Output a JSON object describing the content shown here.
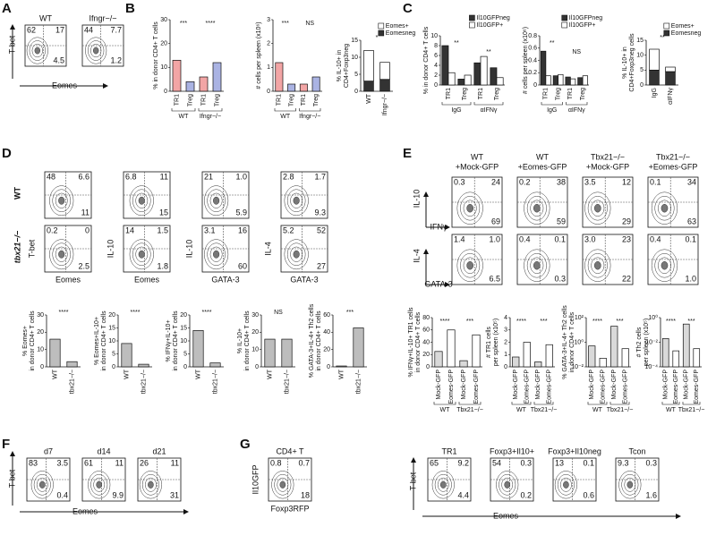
{
  "panel_letters": [
    "A",
    "B",
    "C",
    "D",
    "E",
    "F",
    "G"
  ],
  "row_labels": [
    "WT",
    "tbx21−/−"
  ],
  "shared_axes": [
    {
      "y": "T-bet",
      "x": "Eomes"
    },
    {
      "y": "IL-10",
      "x": "IFNγ"
    },
    {
      "y": "IL-4",
      "x": "GATA-3"
    },
    {
      "y": "T-bet",
      "x": "Eomes"
    },
    {
      "y": "T-bet",
      "x": "Eomes"
    }
  ],
  "flow_plots": [
    {
      "title": "WT",
      "quadrants": [
        "62",
        "17",
        "4.5"
      ]
    },
    {
      "title": "Ifngr−/−",
      "quadrants": [
        "44",
        "7.7",
        "1.2"
      ]
    },
    {
      "quadrants": [
        "48",
        "6.6",
        "11"
      ]
    },
    {
      "quadrants": [
        "6.8",
        "11",
        "15"
      ]
    },
    {
      "quadrants": [
        "21",
        "1.0",
        "5.9"
      ]
    },
    {
      "quadrants": [
        "2.8",
        "1.7",
        "9.3"
      ]
    },
    {
      "y_label": "T-bet",
      "x_label": "Eomes",
      "quadrants": [
        "0.2",
        "0",
        "2.5"
      ]
    },
    {
      "y_label": "IL-10",
      "x_label": "Eomes",
      "quadrants": [
        "14",
        "1.5",
        "1.8"
      ]
    },
    {
      "y_label": "IL-10",
      "x_label": "GATA-3",
      "quadrants": [
        "3.1",
        "16",
        "60"
      ]
    },
    {
      "y_label": "IL-4",
      "x_label": "GATA-3",
      "quadrants": [
        "5.2",
        "52",
        "27"
      ]
    },
    {
      "title": "WT",
      "title2": "+Mock-GFP",
      "quadrants": [
        "0.3",
        "24",
        "69"
      ]
    },
    {
      "title": "WT",
      "title2": "+Eomes-GFP",
      "quadrants": [
        "0.2",
        "38",
        "59"
      ]
    },
    {
      "title": "Tbx21−/−",
      "title2": "+Mock-GFP",
      "quadrants": [
        "3.5",
        "12",
        "29"
      ]
    },
    {
      "title": "Tbx21−/−",
      "title2": "+Eomes-GFP",
      "quadrants": [
        "0.1",
        "34",
        "63"
      ]
    },
    {
      "quadrants": [
        "1.4",
        "1.0",
        "6.5"
      ]
    },
    {
      "quadrants": [
        "0.4",
        "0.1",
        "0.3"
      ]
    },
    {
      "quadrants": [
        "3.0",
        "23",
        "22"
      ]
    },
    {
      "quadrants": [
        "0.4",
        "0.1",
        "1.0"
      ]
    },
    {
      "title": "d7",
      "quadrants": [
        "83",
        "3.5",
        "0.4"
      ]
    },
    {
      "title": "d14",
      "quadrants": [
        "61",
        "11",
        "9.9"
      ]
    },
    {
      "title": "d21",
      "quadrants": [
        "26",
        "11",
        "31"
      ]
    },
    {
      "title": "CD4+ T",
      "y_label": "Il10GFP",
      "x_label": "Foxp3RFP",
      "quadrants": [
        "0.8",
        "0.7",
        "18"
      ]
    },
    {
      "title": "TR1",
      "quadrants": [
        "65",
        "9.2",
        "4.4"
      ]
    },
    {
      "title": "Foxp3+Il10+",
      "quadrants": [
        "54",
        "0.3",
        "0.2"
      ]
    },
    {
      "title": "Foxp3+Il10neg",
      "quadrants": [
        "13",
        "0.1",
        "0.6"
      ]
    },
    {
      "title": "Tcon",
      "quadrants": [
        "9.3",
        "0.3",
        "1.6"
      ]
    }
  ],
  "bar_charts": [
    {
      "y_label": [
        "% in donor CD4+ T cells"
      ],
      "categories": [
        "TR1",
        "Treg",
        "TR1",
        "Treg"
      ],
      "groups": [
        "WT",
        "Ifngr−/−"
      ],
      "values": [
        13,
        4,
        6,
        12
      ],
      "colors": [
        "#f2a5a5",
        "#aab3e3",
        "#f2a5a5",
        "#aab3e3"
      ],
      "ylim": [
        0,
        30
      ],
      "yticks": [
        0,
        10,
        20,
        30
      ],
      "significance": [
        "***",
        "****"
      ]
    },
    {
      "y_label": [
        "# cells per spleen (x10⁶)"
      ],
      "categories": [
        "TR1",
        "Treg",
        "TR1",
        "Treg"
      ],
      "groups": [
        "WT",
        "Ifngr−/−"
      ],
      "values": [
        1.2,
        0.3,
        0.3,
        0.6
      ],
      "colors": [
        "#f2a5a5",
        "#aab3e3",
        "#f2a5a5",
        "#aab3e3"
      ],
      "ylim": [
        0,
        3
      ],
      "yticks": [
        0,
        1,
        2,
        3
      ],
      "significance": [
        "***",
        "NS"
      ]
    },
    {
      "y_label": [
        "% IL-10+ in",
        "CD4+Foxp3neg"
      ],
      "categories": [
        "WT",
        "Ifngr−/−"
      ],
      "mode": "stacked",
      "series": [
        {
          "name": "Eomes+",
          "color": "#ffffff",
          "values": [
            9,
            5
          ]
        },
        {
          "name": "Eomesneg",
          "color": "#333333",
          "values": [
            3,
            3.5
          ]
        }
      ],
      "ylim": [
        0,
        15
      ],
      "yticks": [
        0,
        5,
        10,
        15
      ],
      "significance": [
        "*"
      ]
    },
    {
      "y_label": [
        "% in donor CD4+ T cells"
      ],
      "categories": [
        "TR1",
        "Treg",
        "TR1",
        "Treg"
      ],
      "groups": [
        "IgG",
        "αIFNγ"
      ],
      "mode": "grouped",
      "series": [
        {
          "name": "Il10GFPneg",
          "color": "#333333",
          "values": [
            8,
            1.2,
            4.5,
            3.5
          ]
        },
        {
          "name": "Il10GFP+",
          "color": "#ffffff",
          "values": [
            2.5,
            2,
            5.8,
            1.5
          ]
        }
      ],
      "ylim": [
        0,
        10
      ],
      "yticks": [
        0,
        2,
        4,
        6,
        8,
        10
      ],
      "significance": [
        "**",
        "**"
      ]
    },
    {
      "y_label": [
        "# cells per spleen (x10⁶)"
      ],
      "categories": [
        "TR1",
        "Treg",
        "TR1",
        "Treg"
      ],
      "groups": [
        "IgG",
        "αIFNγ"
      ],
      "mode": "grouped",
      "series": [
        {
          "name": "Il10GFPneg",
          "color": "#333333",
          "values": [
            0.55,
            0.15,
            0.13,
            0.12
          ]
        },
        {
          "name": "Il10GFP+",
          "color": "#ffffff",
          "values": [
            0.15,
            0.17,
            0.1,
            0.15
          ]
        }
      ],
      "ylim": [
        0,
        0.8
      ],
      "yticks": [
        0,
        0.2,
        0.4,
        0.6,
        0.8
      ],
      "significance": [
        "**",
        "NS"
      ]
    },
    {
      "y_label": [
        "% IL-10+ in",
        "CD4+Foxp3neg cells"
      ],
      "categories": [
        "IgG",
        "αIFNγ"
      ],
      "mode": "stacked",
      "series": [
        {
          "name": "Eomes+",
          "color": "#ffffff",
          "values": [
            7,
            1.5
          ]
        },
        {
          "name": "Eomesneg",
          "color": "#333333",
          "values": [
            5,
            4.5
          ]
        }
      ],
      "ylim": [
        0,
        15
      ],
      "yticks": [
        0,
        5,
        10,
        15
      ],
      "significance": [
        "**"
      ]
    },
    {
      "y_label": [
        "% Eomes+",
        "in donor CD4+ T cells"
      ],
      "categories": [
        "WT",
        "tbx21−/−"
      ],
      "values": [
        16,
        3
      ],
      "color": "#bdbdbd",
      "ylim": [
        0,
        30
      ],
      "yticks": [
        0,
        10,
        20,
        30
      ],
      "significance": [
        "****"
      ]
    },
    {
      "y_label": [
        "% Eomes+IL-10+",
        "in donor CD4+ T cells"
      ],
      "categories": [
        "WT",
        "tbx21−/−"
      ],
      "values": [
        9,
        1
      ],
      "color": "#bdbdbd",
      "ylim": [
        0,
        20
      ],
      "yticks": [
        0,
        5,
        10,
        15,
        20
      ],
      "significance": [
        "****"
      ]
    },
    {
      "y_label": [
        "% IFNγ+IL-10+",
        "in donor CD4+ T cells"
      ],
      "categories": [
        "WT",
        "tbx21−/−"
      ],
      "values": [
        14,
        1.5
      ],
      "color": "#bdbdbd",
      "ylim": [
        0,
        20
      ],
      "yticks": [
        0,
        5,
        10,
        15,
        20
      ],
      "significance": [
        "****"
      ]
    },
    {
      "y_label": [
        "% IL-10+",
        "in donor CD4+ T cells"
      ],
      "categories": [
        "WT",
        "tbx21−/−"
      ],
      "values": [
        16,
        16
      ],
      "color": "#bdbdbd",
      "ylim": [
        0,
        30
      ],
      "yticks": [
        0,
        10,
        20,
        30
      ],
      "significance": [
        "NS"
      ]
    },
    {
      "y_label": [
        "% GATA-3+IL-4+ Th2 cells",
        "in donor CD4+ T cells"
      ],
      "categories": [
        "WT",
        "tbx21−/−"
      ],
      "values": [
        1,
        45
      ],
      "color": "#bdbdbd",
      "ylim": [
        0,
        60
      ],
      "yticks": [
        0,
        20,
        40,
        60
      ],
      "significance": [
        "***"
      ]
    },
    {
      "y_label": [
        "% IFNγ+IL-10+ TR1 cells",
        "in donor CD4+ T cells"
      ],
      "categories": [
        "Mock-GFP",
        "Eomes-GFP",
        "Mock-GFP",
        "Eomes-GFP"
      ],
      "groups": [
        "WT",
        "Tbx21−/−"
      ],
      "values": [
        25,
        60,
        10,
        52
      ],
      "colors": [
        "#d9d9d9",
        "#ffffff",
        "#d9d9d9",
        "#ffffff"
      ],
      "ylim": [
        0,
        80
      ],
      "yticks": [
        0,
        20,
        40,
        60,
        80
      ],
      "significance": [
        "****",
        "***"
      ]
    },
    {
      "y_label": [
        "# TR1 cells",
        "per spleen (x10⁵)"
      ],
      "categories": [
        "Mock-GFP",
        "Eomes-GFP",
        "Mock-GFP",
        "Eomes-GFP"
      ],
      "groups": [
        "WT",
        "Tbx21−/−"
      ],
      "values": [
        0.8,
        2,
        0.4,
        1.8
      ],
      "colors": [
        "#d9d9d9",
        "#ffffff",
        "#d9d9d9",
        "#ffffff"
      ],
      "ylim": [
        0,
        4
      ],
      "yticks": [
        0,
        1,
        2,
        3,
        4
      ],
      "significance": [
        "****",
        "***"
      ]
    },
    {
      "y_label": [
        "% GATA-3+IL-4+ Th2 cells",
        "in donor CD4+ T cells"
      ],
      "categories": [
        "Mock-GFP",
        "Eomes-GFP",
        "Mock-GFP",
        "Eomes-GFP"
      ],
      "groups": [
        "WT",
        "Tbx21−/−"
      ],
      "values": [
        0.5,
        0.05,
        20,
        0.3
      ],
      "colors": [
        "#d9d9d9",
        "#ffffff",
        "#d9d9d9",
        "#ffffff"
      ],
      "log": true,
      "ylim": [
        0.01,
        100
      ],
      "yticks": [
        {
          "value": 0.01,
          "label": "10⁻²"
        },
        {
          "value": 1,
          "label": "10⁰"
        },
        {
          "value": 100,
          "label": "10²"
        }
      ],
      "significance": [
        "****",
        "***"
      ]
    },
    {
      "y_label": [
        "# Th2 cells",
        "per spleen (x10⁵)"
      ],
      "categories": [
        "Mock-GFP",
        "Eomes-GFP",
        "Mock-GFP",
        "Eomes-GFP"
      ],
      "groups": [
        "WT",
        "Tbx21−/−"
      ],
      "values": [
        0.02,
        0.002,
        0.3,
        0.003
      ],
      "colors": [
        "#d9d9d9",
        "#ffffff",
        "#d9d9d9",
        "#ffffff"
      ],
      "log": true,
      "ylim": [
        0.0001,
        1
      ],
      "yticks": [
        {
          "value": 0.0001,
          "label": "10⁻⁴"
        },
        {
          "value": 0.01,
          "label": "10⁻²"
        },
        {
          "value": 1,
          "label": "10⁰"
        }
      ],
      "significance": [
        "****",
        "***"
      ]
    }
  ]
}
